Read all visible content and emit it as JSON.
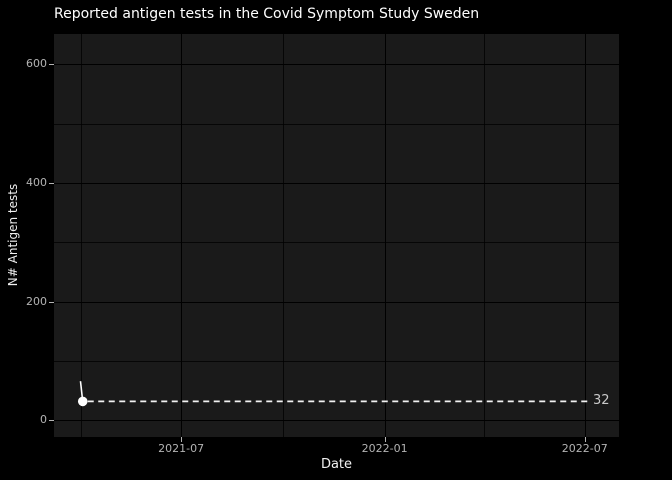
{
  "chart": {
    "title": "Reported antigen tests in the Covid Symptom Study Sweden",
    "y_axis": {
      "label": "N# Antigen tests"
    },
    "x_axis": {
      "label": "Date"
    },
    "annotation": {
      "label": "32"
    }
  },
  "chart_data": {
    "type": "line",
    "title": "Reported antigen tests in the Covid Symptom Study Sweden",
    "xlabel": "Date",
    "ylabel": "N# Antigen tests",
    "x_domain": [
      "2021-03-08",
      "2022-08-01"
    ],
    "y_domain": [
      -28,
      651
    ],
    "x_major_ticks": [
      "2021-07-01",
      "2022-01-01",
      "2022-07-01"
    ],
    "x_tick_labels": [
      "2021-07",
      "2022-01",
      "2022-07"
    ],
    "x_minor_ticks": [
      "2021-04-01",
      "2021-10-01",
      "2022-04-01"
    ],
    "y_major_ticks": [
      0,
      200,
      400,
      600
    ],
    "y_minor_ticks": [
      100,
      300,
      500
    ],
    "grid": true,
    "legend": false,
    "series": [
      {
        "name": "reported-antigen-tests",
        "points": [
          {
            "date": "2021-04-01",
            "value": 66
          },
          {
            "date": "2021-04-03",
            "value": 32
          }
        ]
      }
    ],
    "last_point": {
      "date": "2021-04-03",
      "value": 32,
      "marker": "circle"
    },
    "annotation": {
      "type": "dashed-hline",
      "y": 32,
      "label": "32",
      "x_end": "2022-07-04"
    },
    "colors": {
      "background": "#000000",
      "panel": "#1a1a1a",
      "grid": "#000000",
      "title": "#ffffff",
      "axis_title": "#f0f0f0",
      "tick_label": "#b3b3b3",
      "data": "#ffffff",
      "annotation_line": "#f2f2f2",
      "annotation_label": "#c9c9c9"
    }
  }
}
